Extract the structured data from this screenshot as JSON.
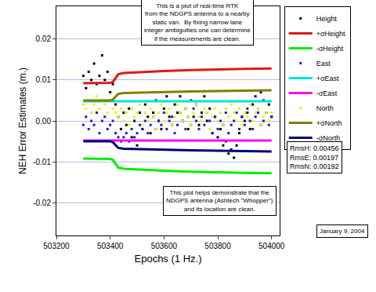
{
  "chart_data": {
    "type": "scatter",
    "xlabel": "Epochs (1 Hz.)",
    "ylabel": "NEH Error Estimates (m.)",
    "xlim": [
      503200,
      504030
    ],
    "xticks": [
      503200,
      503400,
      503600,
      503800,
      504000
    ],
    "ylim": [
      -0.028,
      0.028
    ],
    "yticks": [
      -0.02,
      -0.01,
      {
        "value": 0,
        "label": "0.00"
      },
      0.01,
      0.02
    ],
    "grid": true,
    "legend": "right",
    "annotations": [
      [
        "This is a plot of real-time RTK",
        "from the NDGPS antenna to a nearby",
        "static van.  By fixing narrow lane",
        "integer ambiguities one can determine",
        "if the measurements are clean."
      ],
      [
        "This plot helps demonstrate that the",
        "NDGPS antenna (Ashtech \"Whopper\")",
        "and its location are clean."
      ],
      [
        "RmsH: 0.00456",
        "RmsE: 0.00197",
        "RmsN: 0.00192"
      ],
      [
        "January 9, 2004"
      ]
    ],
    "series": [
      {
        "name": "Height",
        "type": "scatter",
        "color": "#000000",
        "marker": "square",
        "x": [
          503300,
          503310,
          503320,
          503330,
          503340,
          503350,
          503360,
          503370,
          503380,
          503390,
          503400,
          503410,
          503420,
          503430,
          503440,
          503450,
          503460,
          503470,
          503480,
          503490,
          503500,
          503510,
          503520,
          503530,
          503540,
          503550,
          503560,
          503570,
          503580,
          503590,
          503600,
          503610,
          503620,
          503630,
          503640,
          503650,
          503660,
          503670,
          503680,
          503690,
          503700,
          503710,
          503720,
          503730,
          503740,
          503750,
          503760,
          503770,
          503780,
          503790,
          503800,
          503810,
          503820,
          503830,
          503840,
          503850,
          503860,
          503870,
          503880,
          503890,
          503900,
          503910,
          503920,
          503930,
          503940,
          503950,
          503960,
          503970,
          503980,
          503990,
          504000
        ],
        "values": [
          0.011,
          0.008,
          0.012,
          0.01,
          0.014,
          0.009,
          0.011,
          0.016,
          0.01,
          0.012,
          0.007,
          0.009,
          0.004,
          0.001,
          -0.002,
          0.002,
          -0.001,
          0.003,
          -0.004,
          0.0,
          -0.006,
          0.002,
          -0.002,
          0.004,
          0.001,
          -0.003,
          0.002,
          0.005,
          0.0,
          -0.002,
          0.003,
          0.006,
          0.001,
          -0.001,
          0.004,
          0.002,
          0.006,
          0.0,
          0.003,
          -0.002,
          0.005,
          0.001,
          0.004,
          -0.001,
          0.002,
          0.006,
          0.0,
          0.003,
          -0.003,
          0.001,
          -0.004,
          -0.002,
          -0.006,
          -0.005,
          -0.008,
          -0.007,
          -0.009,
          -0.006,
          -0.003,
          0.001,
          0.0,
          0.002,
          -0.002,
          0.004,
          0.006,
          0.003,
          0.007,
          0.005,
          0.002,
          0.004,
          0.001
        ]
      },
      {
        "name": "+σHeight",
        "type": "line",
        "color": "#e01818",
        "line_style": "solid",
        "x": [
          503300,
          503400,
          503410,
          503420,
          503430,
          503450,
          503500,
          503600,
          503700,
          503800,
          503900,
          504000
        ],
        "values": [
          0.0092,
          0.0093,
          0.0095,
          0.0105,
          0.0114,
          0.0117,
          0.0119,
          0.0122,
          0.0124,
          0.0126,
          0.0127,
          0.0128
        ]
      },
      {
        "name": "-σHeight",
        "type": "line",
        "color": "#00ee00",
        "line_style": "solid",
        "x": [
          503300,
          503400,
          503410,
          503420,
          503430,
          503450,
          503500,
          503600,
          503700,
          503800,
          503900,
          504000
        ],
        "values": [
          -0.0092,
          -0.0093,
          -0.0095,
          -0.0105,
          -0.0114,
          -0.0117,
          -0.0119,
          -0.0122,
          -0.0124,
          -0.0126,
          -0.0127,
          -0.0128
        ]
      },
      {
        "name": "East",
        "type": "scatter",
        "color": "#1c1cd0",
        "marker": "square",
        "x": [
          503300,
          503310,
          503320,
          503330,
          503340,
          503350,
          503360,
          503370,
          503380,
          503390,
          503400,
          503410,
          503420,
          503430,
          503440,
          503450,
          503460,
          503470,
          503480,
          503490,
          503500,
          503510,
          503520,
          503530,
          503540,
          503550,
          503560,
          503570,
          503580,
          503590,
          503600,
          503610,
          503620,
          503630,
          503640,
          503650,
          503660,
          503670,
          503680,
          503690,
          503700,
          503710,
          503720,
          503730,
          503740,
          503750,
          503760,
          503770,
          503780,
          503790,
          503800,
          503810,
          503820,
          503830,
          503840,
          503850,
          503860,
          503870,
          503880,
          503890,
          503900,
          503910,
          503920,
          503930,
          503940,
          503950,
          503960,
          503970,
          503980,
          503990,
          504000
        ],
        "values": [
          -0.001,
          0.001,
          -0.002,
          0.0,
          -0.001,
          0.002,
          -0.003,
          0.0,
          0.001,
          -0.002,
          -0.001,
          0.0,
          -0.003,
          -0.004,
          -0.005,
          -0.004,
          -0.003,
          -0.005,
          -0.002,
          -0.004,
          -0.003,
          -0.001,
          -0.002,
          0.0,
          -0.003,
          -0.001,
          0.001,
          -0.002,
          0.0,
          -0.001,
          0.002,
          -0.002,
          0.0,
          0.001,
          -0.003,
          -0.001,
          0.002,
          0.0,
          -0.002,
          0.001,
          -0.001,
          0.003,
          0.0,
          -0.002,
          0.001,
          -0.001,
          0.002,
          0.0,
          -0.003,
          0.001,
          -0.002,
          0.0,
          -0.001,
          0.002,
          -0.003,
          -0.001,
          0.0,
          0.002,
          -0.002,
          0.001,
          -0.001,
          0.003,
          0.0,
          -0.002,
          0.001,
          0.002,
          -0.001,
          0.0,
          0.002,
          -0.001,
          0.001
        ]
      },
      {
        "name": "+σEast",
        "type": "line",
        "color": "#00e0e0",
        "line_style": "solid",
        "x": [
          503300,
          503400,
          503410,
          503420,
          503430,
          503450,
          503500,
          503600,
          503700,
          503800,
          503900,
          504000
        ],
        "values": [
          0.0048,
          0.0048,
          0.0048,
          0.0048,
          0.0048,
          0.0048,
          0.0048,
          0.0048,
          0.0048,
          0.0048,
          0.0048,
          0.0048
        ]
      },
      {
        "name": "-σEast",
        "type": "line",
        "color": "#ff00ff",
        "line_style": "solid",
        "x": [
          503300,
          503400,
          503410,
          503420,
          503430,
          503450,
          503500,
          503600,
          503700,
          503800,
          503900,
          504000
        ],
        "values": [
          -0.0048,
          -0.0048,
          -0.0048,
          -0.0048,
          -0.0048,
          -0.0048,
          -0.0048,
          -0.0048,
          -0.0048,
          -0.0048,
          -0.0048,
          -0.0048
        ]
      },
      {
        "name": "North",
        "type": "scatter",
        "color": "#f0f000",
        "marker": "square",
        "x": [
          503300,
          503310,
          503320,
          503330,
          503340,
          503350,
          503360,
          503370,
          503380,
          503390,
          503400,
          503410,
          503420,
          503430,
          503440,
          503450,
          503460,
          503470,
          503480,
          503490,
          503500,
          503510,
          503520,
          503530,
          503540,
          503550,
          503560,
          503570,
          503580,
          503590,
          503600,
          503610,
          503620,
          503630,
          503640,
          503650,
          503660,
          503670,
          503680,
          503690,
          503700,
          503710,
          503720,
          503730,
          503740,
          503750,
          503760,
          503770,
          503780,
          503790,
          503800,
          503810,
          503820,
          503830,
          503840,
          503850,
          503860,
          503870,
          503880,
          503890,
          503900,
          503910,
          503920,
          503930,
          503940,
          503950,
          503960,
          503970,
          503980,
          503990,
          504000
        ],
        "values": [
          0.004,
          0.003,
          0.005,
          0.002,
          0.004,
          0.006,
          0.003,
          0.005,
          0.004,
          0.002,
          0.005,
          0.003,
          0.002,
          0.001,
          0.003,
          0.0,
          0.002,
          -0.001,
          0.003,
          0.001,
          0.002,
          0.004,
          -0.001,
          0.002,
          0.0,
          0.003,
          0.001,
          -0.002,
          0.002,
          0.004,
          0.0,
          0.002,
          0.003,
          -0.001,
          0.001,
          0.004,
          0.002,
          0.0,
          0.003,
          0.001,
          -0.001,
          0.002,
          0.004,
          0.001,
          0.0,
          0.003,
          0.002,
          -0.002,
          0.001,
          0.003,
          0.0,
          0.002,
          -0.001,
          0.003,
          0.001,
          0.004,
          0.002,
          0.0,
          0.003,
          -0.001,
          0.002,
          0.001,
          0.004,
          0.0,
          0.002,
          0.003,
          -0.001,
          0.001,
          0.002,
          0.0,
          0.002
        ]
      },
      {
        "name": "+σNorth",
        "type": "line",
        "color": "#808000",
        "line_style": "solid",
        "x": [
          503300,
          503400,
          503410,
          503420,
          503430,
          503450,
          503500,
          503600,
          503700,
          503800,
          503900,
          504000
        ],
        "values": [
          0.005,
          0.005,
          0.0052,
          0.006,
          0.0066,
          0.0068,
          0.0069,
          0.0071,
          0.0072,
          0.0073,
          0.0074,
          0.0075
        ]
      },
      {
        "name": "-σNorth",
        "type": "line",
        "color": "#000080",
        "line_style": "solid",
        "x": [
          503300,
          503400,
          503410,
          503420,
          503430,
          503450,
          503500,
          503600,
          503700,
          503800,
          503900,
          504000
        ],
        "values": [
          -0.005,
          -0.005,
          -0.0052,
          -0.006,
          -0.0066,
          -0.0068,
          -0.0069,
          -0.0071,
          -0.0072,
          -0.0073,
          -0.0074,
          -0.0075
        ]
      }
    ]
  }
}
